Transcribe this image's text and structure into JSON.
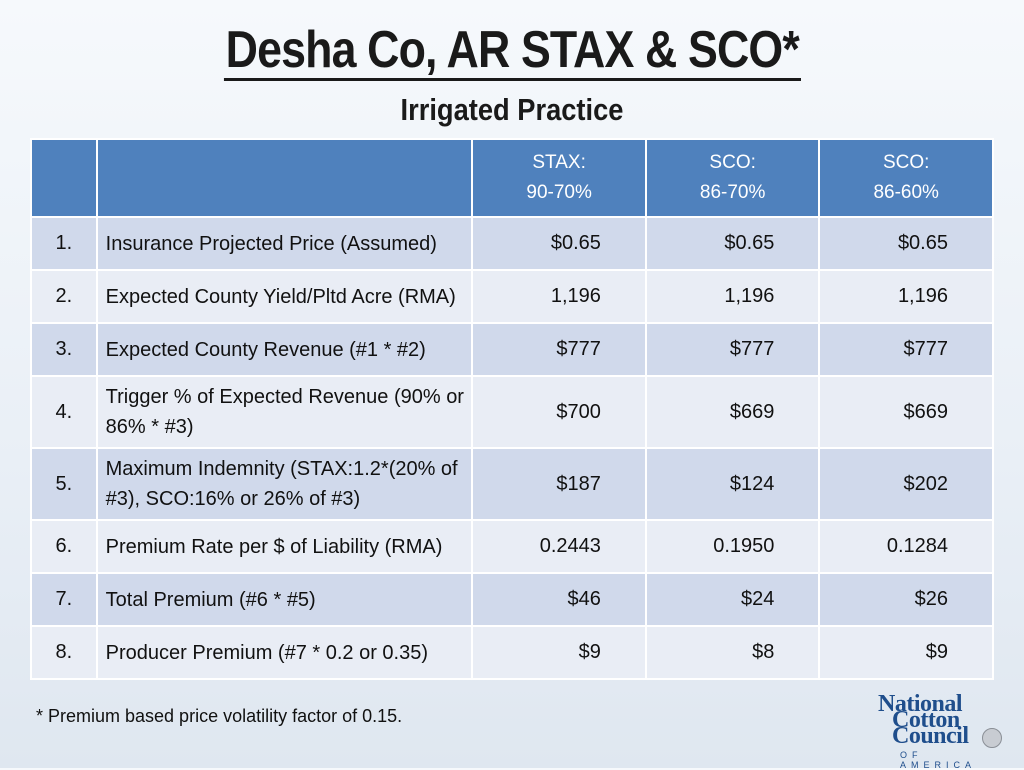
{
  "title": "Desha Co, AR STAX & SCO*",
  "subtitle": "Irrigated Practice",
  "columns": [
    {
      "line1": "STAX:",
      "line2": "90-70%"
    },
    {
      "line1": "SCO:",
      "line2": "86-70%"
    },
    {
      "line1": "SCO:",
      "line2": "86-60%"
    }
  ],
  "rows": [
    {
      "num": "1.",
      "desc": "Insurance Projected Price (Assumed)",
      "values": [
        "$0.65",
        "$0.65",
        "$0.65"
      ]
    },
    {
      "num": "2.",
      "desc": "Expected County Yield/Pltd Acre (RMA)",
      "values": [
        "1,196",
        "1,196",
        "1,196"
      ]
    },
    {
      "num": "3.",
      "desc": "Expected County Revenue (#1 * #2)",
      "values": [
        "$777",
        "$777",
        "$777"
      ]
    },
    {
      "num": "4.",
      "desc_line1": "Trigger % of Expected Revenue (90% or",
      "desc_line2": "86% * #3)",
      "values": [
        "$700",
        "$669",
        "$669"
      ]
    },
    {
      "num": "5.",
      "desc_line1": "Maximum Indemnity (STAX:1.2*(20% of",
      "desc_line2": "#3), SCO:16% or 26% of #3)",
      "values": [
        "$187",
        "$124",
        "$202"
      ]
    },
    {
      "num": "6.",
      "desc": "Premium Rate per $ of Liability (RMA)",
      "values": [
        "0.2443",
        "0.1950",
        "0.1284"
      ]
    },
    {
      "num": "7.",
      "desc": "Total Premium (#6 * #5)",
      "values": [
        "$46",
        "$24",
        "$26"
      ]
    },
    {
      "num": "8.",
      "desc": "Producer Premium (#7 * 0.2 or 0.35)",
      "values": [
        "$9",
        "$8",
        "$9"
      ]
    }
  ],
  "footnote": "* Premium based price volatility factor of 0.15.",
  "logo": {
    "line1": "National",
    "line2": "Cotton",
    "line3": "Council",
    "line4": "OF AMERICA"
  },
  "colors": {
    "header": "#4f81bd",
    "row_dark": "#d0d9eb",
    "row_light": "#e9edf5",
    "logo": "#1f4e8c"
  }
}
